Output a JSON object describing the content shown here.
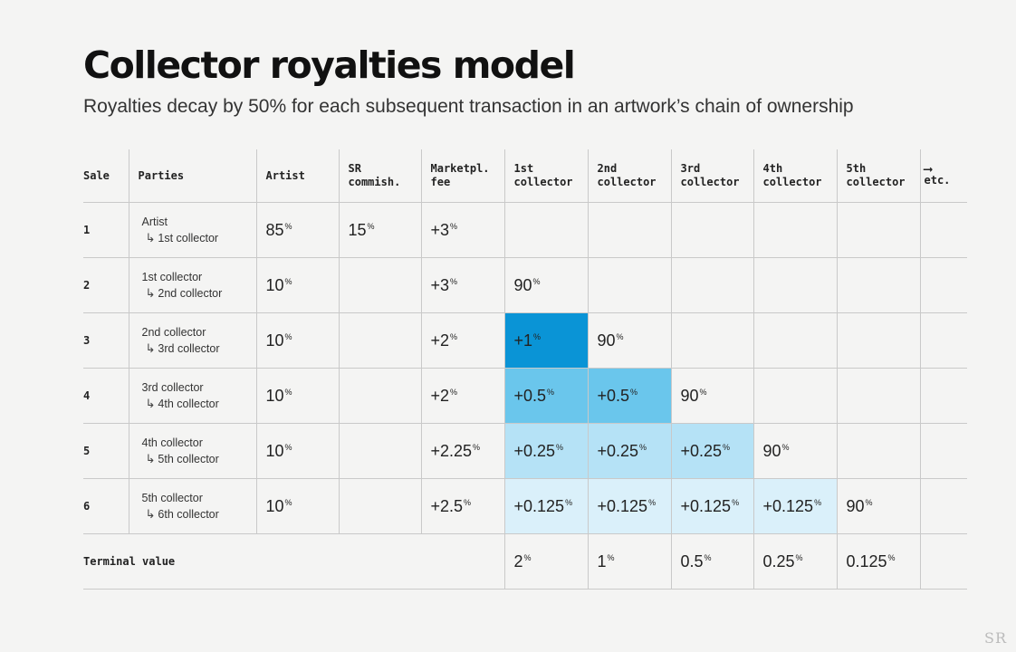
{
  "title": "Collector royalties model",
  "subtitle": "Royalties decay by 50% for each subsequent transaction in an artwork’s chain of ownership",
  "columns": [
    {
      "line1": "Sale",
      "line2": ""
    },
    {
      "line1": "Parties",
      "line2": ""
    },
    {
      "line1": "Artist",
      "line2": ""
    },
    {
      "line1": "SR",
      "line2": "commish."
    },
    {
      "line1": "Marketpl.",
      "line2": "fee"
    },
    {
      "line1": "1st",
      "line2": "collector"
    },
    {
      "line1": "2nd",
      "line2": "collector"
    },
    {
      "line1": "3rd",
      "line2": "collector"
    },
    {
      "line1": "4th",
      "line2": "collector"
    },
    {
      "line1": "5th",
      "line2": "collector"
    }
  ],
  "etc": {
    "arrow": "⟶",
    "label": "etc."
  },
  "percent_sign": "%",
  "party_arrow": "↳",
  "rows": [
    {
      "sale": "1",
      "from": "Artist",
      "to": "1st collector",
      "cells": [
        "85",
        "15",
        "+3",
        "",
        "",
        "",
        "",
        ""
      ]
    },
    {
      "sale": "2",
      "from": "1st collector",
      "to": "2nd collector",
      "cells": [
        "10",
        "",
        "+3",
        "90",
        "",
        "",
        "",
        ""
      ]
    },
    {
      "sale": "3",
      "from": "2nd collector",
      "to": "3rd collector",
      "cells": [
        "10",
        "",
        "+2",
        "+1",
        "90",
        "",
        "",
        ""
      ]
    },
    {
      "sale": "4",
      "from": "3rd collector",
      "to": "4th collector",
      "cells": [
        "10",
        "",
        "+2",
        "+0.5",
        "+0.5",
        "90",
        "",
        ""
      ]
    },
    {
      "sale": "5",
      "from": "4th collector",
      "to": "5th collector",
      "cells": [
        "10",
        "",
        "+2.25",
        "+0.25",
        "+0.25",
        "+0.25",
        "90",
        ""
      ]
    },
    {
      "sale": "6",
      "from": "5th collector",
      "to": "6th collector",
      "cells": [
        "10",
        "",
        "+2.5",
        "+0.125",
        "+0.125",
        "+0.125",
        "+0.125",
        "90"
      ]
    }
  ],
  "terminal": {
    "label": "Terminal value",
    "values": [
      "2",
      "1",
      "0.5",
      "0.25",
      "0.125"
    ]
  },
  "highlight_colors": {
    "+1": "#0a94d6",
    "+0.5": "#6ac6ec",
    "+0.25": "#b5e2f6",
    "+0.125": "#daf0fa"
  },
  "watermark": "SR"
}
